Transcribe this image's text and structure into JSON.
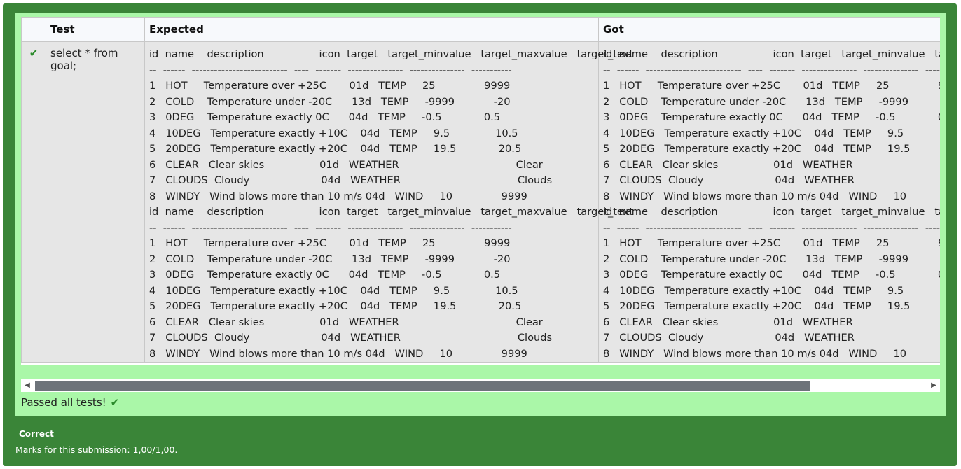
{
  "table": {
    "headers": {
      "status": "",
      "test": "Test",
      "expected": "Expected",
      "got": "Got"
    },
    "row": {
      "status_icon": "✔",
      "test": "select * from goal;",
      "expected": "id  name    description                 icon  target   target_minvalue   target_maxvalue   target_text\n--  ------  --------------------------  ----  -------  ---------------  ---------------  -----------\n1   HOT     Temperature over +25C       01d   TEMP     25               9999\n2   COLD    Temperature under -20C      13d   TEMP     -9999            -20\n3   0DEG    Temperature exactly 0C      04d   TEMP     -0.5             0.5\n4   10DEG   Temperature exactly +10C    04d   TEMP     9.5              10.5\n5   20DEG   Temperature exactly +20C    04d   TEMP     19.5             20.5\n6   CLEAR   Clear skies                 01d   WEATHER                                    Clear\n7   CLOUDS  Cloudy                      04d   WEATHER                                    Clouds\n8   WINDY   Wind blows more than 10 m/s 04d   WIND     10               9999\nid  name    description                 icon  target   target_minvalue   target_maxvalue   target_text\n--  ------  --------------------------  ----  -------  ---------------  ---------------  -----------\n1   HOT     Temperature over +25C       01d   TEMP     25               9999\n2   COLD    Temperature under -20C      13d   TEMP     -9999            -20\n3   0DEG    Temperature exactly 0C      04d   TEMP     -0.5             0.5\n4   10DEG   Temperature exactly +10C    04d   TEMP     9.5              10.5\n5   20DEG   Temperature exactly +20C    04d   TEMP     19.5             20.5\n6   CLEAR   Clear skies                 01d   WEATHER                                    Clear\n7   CLOUDS  Cloudy                      04d   WEATHER                                    Clouds\n8   WINDY   Wind blows more than 10 m/s 04d   WIND     10               9999",
      "got": "id  name    description                 icon  target   target_minvalue   target_maxvalue   target_text\n--  ------  --------------------------  ----  -------  ---------------  ---------------  -----------\n1   HOT     Temperature over +25C       01d   TEMP     25               9999\n2   COLD    Temperature under -20C      13d   TEMP     -9999            -20\n3   0DEG    Temperature exactly 0C      04d   TEMP     -0.5             0.5\n4   10DEG   Temperature exactly +10C    04d   TEMP     9.5              10.5\n5   20DEG   Temperature exactly +20C    04d   TEMP     19.5             20.5\n6   CLEAR   Clear skies                 01d   WEATHER                                    Clear\n7   CLOUDS  Cloudy                      04d   WEATHER                                    Clouds\n8   WINDY   Wind blows more than 10 m/s 04d   WIND     10               9999\nid  name    description                 icon  target   target_minvalue   target_maxvalue   target_text\n--  ------  --------------------------  ----  -------  ---------------  ---------------  -----------\n1   HOT     Temperature over +25C       01d   TEMP     25               9999\n2   COLD    Temperature under -20C      13d   TEMP     -9999            -20\n3   0DEG    Temperature exactly 0C      04d   TEMP     -0.5             0.5\n4   10DEG   Temperature exactly +10C    04d   TEMP     9.5              10.5\n5   20DEG   Temperature exactly +20C    04d   TEMP     19.5             20.5\n6   CLEAR   Clear skies                 01d   WEATHER                                    Clear\n7   CLOUDS  Cloudy                      04d   WEATHER                                    Clouds\n8   WINDY   Wind blows more than 10 m/s 04d   WIND     10               9999"
    }
  },
  "scrollbar": {
    "left_arrow": "◀",
    "right_arrow": "▶"
  },
  "result": {
    "text": "Passed all tests!",
    "icon": "✔"
  },
  "feedback": {
    "grade": "Correct",
    "marks": "Marks for this submission: 1,00/1,00."
  },
  "colors": {
    "outer": "#3a8538",
    "inner": "#aaf7a8",
    "check": "#2a8a2a",
    "cell": "#e6e6e6"
  }
}
